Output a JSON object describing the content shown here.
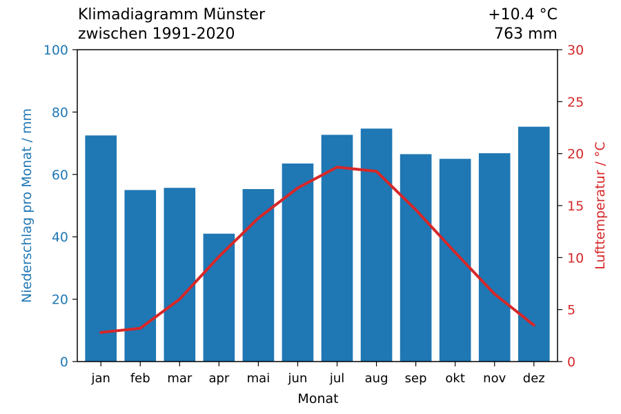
{
  "header": {
    "title": "Klimadiagramm Münster",
    "subtitle": "zwischen 1991-2020",
    "annual_temperature": "+10.4 °C",
    "annual_precipitation": "763 mm"
  },
  "colors": {
    "precipitation": "#1f77b4",
    "temperature": "#d62728",
    "axis": "#000000"
  },
  "chart_data": {
    "type": "bar",
    "title": "Klimadiagramm Münster",
    "subtitle": "zwischen 1991-2020",
    "xlabel": "Monat",
    "categories": [
      "jan",
      "feb",
      "mar",
      "apr",
      "mai",
      "jun",
      "jul",
      "aug",
      "sep",
      "okt",
      "nov",
      "dez"
    ],
    "y_left": {
      "label": "Niederschlag pro Monat / mm",
      "lim": [
        0,
        100
      ],
      "ticks": [
        0,
        20,
        40,
        60,
        80,
        100
      ]
    },
    "y_right": {
      "label": "Lufttemperatur / °C",
      "lim": [
        0,
        30
      ],
      "ticks": [
        0,
        5,
        10,
        15,
        20,
        25,
        30
      ]
    },
    "series": [
      {
        "type": "bar",
        "axis": "left",
        "values": [
          72.5,
          55.0,
          55.7,
          41.0,
          55.3,
          63.5,
          72.7,
          74.7,
          66.5,
          65.0,
          66.8,
          75.3
        ]
      },
      {
        "type": "line",
        "axis": "right",
        "values": [
          2.8,
          3.2,
          6.0,
          10.1,
          13.8,
          16.7,
          18.7,
          18.3,
          14.6,
          10.5,
          6.5,
          3.5
        ]
      }
    ],
    "grid": false,
    "legend": "none"
  }
}
